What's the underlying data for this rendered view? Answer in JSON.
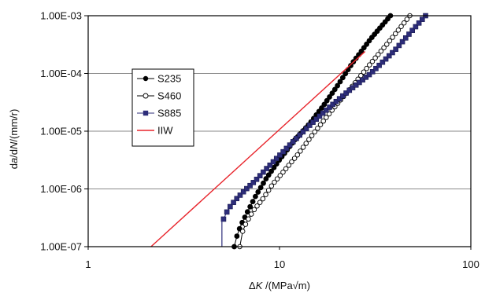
{
  "chart_data": {
    "type": "line",
    "title": "",
    "xlabel": {
      "prefix": "Δ",
      "italic": "K",
      "rest": " /(MPa√m)"
    },
    "ylabel": {
      "prefix": "d",
      "italic1": "a",
      "mid": "/d",
      "italic2": "N",
      "rest": "/(mm/r)"
    },
    "x_scale": "log",
    "y_scale": "log",
    "xlim": [
      1,
      100
    ],
    "ylim": [
      1e-07,
      0.001
    ],
    "x_ticks": [
      1,
      10,
      100
    ],
    "x_tick_labels": [
      "1",
      "10",
      "100"
    ],
    "y_ticks": [
      1e-07,
      1e-06,
      1e-05,
      0.0001,
      0.001
    ],
    "y_tick_labels": [
      "1.00E-07",
      "1.00E-06",
      "1.00E-05",
      "1.00E-04",
      "1.00E-03"
    ],
    "grid": {
      "horizontal": true,
      "vertical": false
    },
    "legend_position": "left-middle",
    "series": [
      {
        "name": "S235",
        "marker": "filled-circle",
        "color": "#000000",
        "line_color": "#000000",
        "x_start": 5.8,
        "x_end": 38,
        "points": [
          [
            5.8,
            1e-07
          ],
          [
            5.9,
            1.3e-07
          ],
          [
            6.05,
            1.7e-07
          ],
          [
            6.3,
            2.4e-07
          ],
          [
            6.8,
            4e-07
          ],
          [
            7.5,
            7.5e-07
          ],
          [
            8.5,
            1.5e-06
          ],
          [
            10,
            3.2e-06
          ],
          [
            12,
            7e-06
          ],
          [
            14.5,
            1.4e-05
          ],
          [
            17,
            2.8e-05
          ],
          [
            20,
            6e-05
          ],
          [
            24,
            0.00015
          ],
          [
            30,
            0.0004
          ],
          [
            38,
            0.001
          ]
        ]
      },
      {
        "name": "S460",
        "marker": "open-circle",
        "color": "#000000",
        "line_color": "#000000",
        "x_start": 6.2,
        "x_end": 48,
        "points": [
          [
            6.2,
            1e-07
          ],
          [
            6.25,
            1.3e-07
          ],
          [
            6.4,
            1.8e-07
          ],
          [
            6.7,
            2.6e-07
          ],
          [
            7.3,
            4.2e-07
          ],
          [
            8.2,
            6.8e-07
          ],
          [
            9.2,
            1.2e-06
          ],
          [
            10.5,
            2e-06
          ],
          [
            12.5,
            4e-06
          ],
          [
            15,
            9e-06
          ],
          [
            19,
            2.4e-05
          ],
          [
            24,
            6e-05
          ],
          [
            30,
            0.00015
          ],
          [
            38,
            0.00038
          ],
          [
            48,
            0.001
          ]
        ]
      },
      {
        "name": "S885",
        "marker": "filled-square",
        "color": "#2d2d7a",
        "line_color": "#2d2d7a",
        "x_start": 5.1,
        "x_end": 58,
        "points": [
          [
            5.1,
            3e-07
          ],
          [
            5.4,
            4.5e-07
          ],
          [
            5.9,
            6.5e-07
          ],
          [
            6.6,
            9.5e-07
          ],
          [
            7.5,
            1.4e-06
          ],
          [
            8.5,
            2.2e-06
          ],
          [
            10,
            3.8e-06
          ],
          [
            12,
            7e-06
          ],
          [
            14.5,
            1.3e-05
          ],
          [
            18,
            2.5e-05
          ],
          [
            23,
            5e-05
          ],
          [
            30,
            0.0001
          ],
          [
            40,
            0.00025
          ],
          [
            50,
            0.00058
          ],
          [
            58,
            0.001
          ]
        ]
      },
      {
        "name": "IIW",
        "marker": "none",
        "color": "#e8252c",
        "line_color": "#e8252c",
        "points": [
          [
            2.13,
            1e-07
          ],
          [
            28,
            0.00024
          ]
        ]
      }
    ],
    "threshold_segment": {
      "series": "S885",
      "x": 5.0,
      "y_from": 1e-07,
      "y_to": 3e-07
    }
  }
}
